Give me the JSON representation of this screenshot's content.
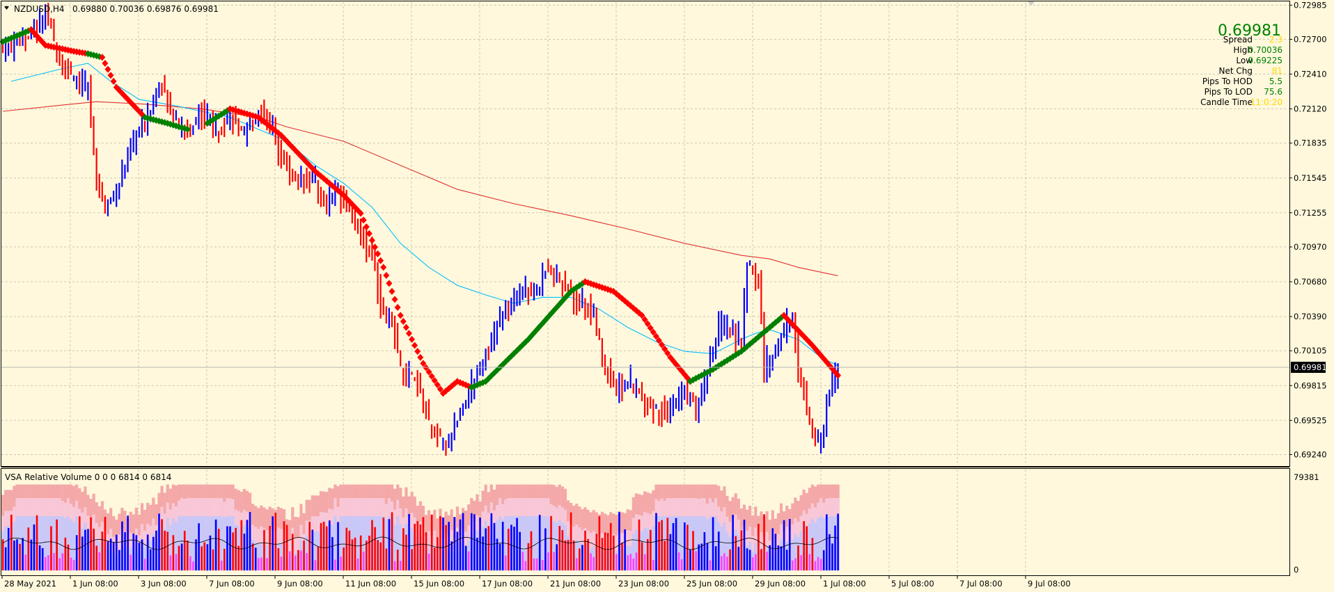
{
  "chart_header": {
    "symbol_tf": "NZDUSD,H4",
    "ohlc": "0.69880 0.70036 0.69876 0.69981"
  },
  "info_panel": {
    "price": "0.69981",
    "rows": [
      {
        "label": "Spread",
        "value": "2.3",
        "color": "#FFD700"
      },
      {
        "label": "High",
        "value": "0.70036",
        "color": "#008000"
      },
      {
        "label": "Low",
        "value": "0.69225",
        "color": "#008000"
      },
      {
        "label": "Net Chg",
        "value": "81",
        "color": "#FFD700"
      },
      {
        "label": "Pips To HOD",
        "value": "5.5",
        "color": "#008000"
      },
      {
        "label": "Pips To LOD",
        "value": "75.6",
        "color": "#008000"
      },
      {
        "label": "Candle Time",
        "value": "11:0:20",
        "color": "#FFD700"
      }
    ]
  },
  "price_axis": {
    "ticks": [
      "0.72985",
      "0.72700",
      "0.72410",
      "0.72120",
      "0.71835",
      "0.71545",
      "0.71255",
      "0.70970",
      "0.70680",
      "0.70390",
      "0.70105",
      "0.69815",
      "0.69525",
      "0.69240"
    ],
    "current_label": "0.69981"
  },
  "volume_panel": {
    "title": "VSA Relative Volume 0 0 0 6814 0 6814",
    "max_label": "79381",
    "min_label": "0"
  },
  "time_axis": {
    "labels": [
      "28 May 2021",
      "1 Jun 08:00",
      "3 Jun 08:00",
      "7 Jun 08:00",
      "9 Jun 08:00",
      "11 Jun 08:00",
      "15 Jun 08:00",
      "17 Jun 08:00",
      "21 Jun 08:00",
      "23 Jun 08:00",
      "25 Jun 08:00",
      "29 Jun 08:00",
      "1 Jul 08:00",
      "5 Jul 08:00",
      "7 Jul 08:00",
      "9 Jul 08:00"
    ]
  },
  "colors": {
    "background": "#FFF8DC",
    "grid": "#C8C8B4",
    "bull_bar": "#0000FF",
    "bear_bar": "#FF0000",
    "ma_fast": "#00BFFF",
    "ma_slow": "#E03030",
    "trail_up": "#008000",
    "trail_down": "#FF0000"
  },
  "chart_data": {
    "type": "ohlc",
    "symbol": "NZDUSD",
    "timeframe": "H4",
    "ylim": [
      0.6915,
      0.7301
    ],
    "bar_count": 240,
    "price_path": [
      [
        0,
        0.726
      ],
      [
        10,
        0.7275
      ],
      [
        15,
        0.729
      ],
      [
        20,
        0.7255
      ],
      [
        25,
        0.7235
      ],
      [
        30,
        0.723
      ],
      [
        33,
        0.715
      ],
      [
        36,
        0.713
      ],
      [
        41,
        0.715
      ],
      [
        46,
        0.7185
      ],
      [
        50,
        0.72
      ],
      [
        55,
        0.7235
      ],
      [
        60,
        0.7205
      ],
      [
        65,
        0.719
      ],
      [
        70,
        0.721
      ],
      [
        75,
        0.7195
      ],
      [
        80,
        0.7205
      ],
      [
        85,
        0.719
      ],
      [
        90,
        0.721
      ],
      [
        95,
        0.7195
      ],
      [
        98,
        0.7175
      ],
      [
        102,
        0.7155
      ],
      [
        108,
        0.7155
      ],
      [
        114,
        0.7135
      ],
      [
        118,
        0.7145
      ],
      [
        122,
        0.713
      ],
      [
        126,
        0.7105
      ],
      [
        130,
        0.709
      ],
      [
        134,
        0.704
      ],
      [
        138,
        0.7025
      ],
      [
        140,
        0.6995
      ],
      [
        144,
        0.699
      ],
      [
        148,
        0.6968
      ],
      [
        150,
        0.695
      ],
      [
        152,
        0.6942
      ],
      [
        154,
        0.6935
      ],
      [
        156,
        0.693
      ],
      [
        160,
        0.6955
      ],
      [
        164,
        0.6975
      ],
      [
        168,
        0.7
      ],
      [
        172,
        0.702
      ],
      [
        176,
        0.704
      ],
      [
        180,
        0.705
      ],
      [
        184,
        0.7065
      ],
      [
        188,
        0.706
      ],
      [
        192,
        0.708
      ],
      [
        196,
        0.707
      ],
      [
        200,
        0.7055
      ],
      [
        204,
        0.705
      ],
      [
        208,
        0.704
      ],
      [
        212,
        0.6995
      ],
      [
        216,
        0.698
      ],
      [
        220,
        0.6985
      ],
      [
        224,
        0.6975
      ],
      [
        228,
        0.6965
      ],
      [
        232,
        0.696
      ],
      [
        236,
        0.6965
      ],
      [
        240,
        0.698
      ],
      [
        244,
        0.696
      ],
      [
        248,
        0.6995
      ],
      [
        252,
        0.703
      ],
      [
        256,
        0.7025
      ],
      [
        260,
        0.702
      ],
      [
        262,
        0.7085
      ],
      [
        264,
        0.7075
      ],
      [
        266,
        0.707
      ],
      [
        268,
        0.6995
      ],
      [
        270,
        0.7005
      ],
      [
        272,
        0.701
      ],
      [
        274,
        0.7025
      ],
      [
        278,
        0.704
      ],
      [
        280,
        0.699
      ],
      [
        282,
        0.6975
      ],
      [
        284,
        0.695
      ],
      [
        286,
        0.6935
      ],
      [
        288,
        0.694
      ],
      [
        290,
        0.6965
      ],
      [
        292,
        0.6985
      ],
      [
        294,
        0.6998
      ]
    ],
    "ma_slow": [
      [
        0,
        0.721
      ],
      [
        20,
        0.7215
      ],
      [
        33,
        0.7218
      ],
      [
        50,
        0.7216
      ],
      [
        70,
        0.7212
      ],
      [
        90,
        0.7205
      ],
      [
        100,
        0.7197
      ],
      [
        120,
        0.7185
      ],
      [
        140,
        0.7165
      ],
      [
        160,
        0.7145
      ],
      [
        180,
        0.7133
      ],
      [
        200,
        0.7123
      ],
      [
        220,
        0.7112
      ],
      [
        240,
        0.71
      ],
      [
        260,
        0.709
      ],
      [
        270,
        0.7087
      ],
      [
        280,
        0.708
      ],
      [
        294,
        0.7073
      ]
    ],
    "ma_fast": [
      [
        3,
        0.7235
      ],
      [
        20,
        0.7245
      ],
      [
        30,
        0.725
      ],
      [
        38,
        0.7235
      ],
      [
        48,
        0.722
      ],
      [
        60,
        0.7215
      ],
      [
        80,
        0.7205
      ],
      [
        100,
        0.7185
      ],
      [
        110,
        0.7165
      ],
      [
        120,
        0.715
      ],
      [
        130,
        0.713
      ],
      [
        140,
        0.71
      ],
      [
        150,
        0.708
      ],
      [
        160,
        0.7065
      ],
      [
        170,
        0.7057
      ],
      [
        180,
        0.705
      ],
      [
        190,
        0.7055
      ],
      [
        200,
        0.7055
      ],
      [
        210,
        0.7045
      ],
      [
        220,
        0.703
      ],
      [
        230,
        0.7018
      ],
      [
        240,
        0.701
      ],
      [
        250,
        0.7008
      ],
      [
        260,
        0.702
      ],
      [
        265,
        0.7025
      ],
      [
        270,
        0.7028
      ],
      [
        280,
        0.702
      ],
      [
        288,
        0.7005
      ],
      [
        294,
        0.6998
      ]
    ],
    "trail_segments": [
      {
        "trend": "up",
        "points": [
          [
            0,
            0.7268
          ],
          [
            10,
            0.7278
          ]
        ]
      },
      {
        "trend": "down",
        "points": [
          [
            10,
            0.7278
          ],
          [
            15,
            0.7265
          ],
          [
            25,
            0.726
          ],
          [
            30,
            0.7258
          ]
        ]
      },
      {
        "trend": "up",
        "points": [
          [
            30,
            0.7258
          ],
          [
            35,
            0.7255
          ]
        ]
      },
      {
        "trend": "down",
        "points": [
          [
            35,
            0.7255
          ],
          [
            40,
            0.723
          ],
          [
            50,
            0.7205
          ]
        ]
      },
      {
        "trend": "up",
        "points": [
          [
            50,
            0.7205
          ],
          [
            58,
            0.72
          ],
          [
            65,
            0.7195
          ]
        ]
      },
      {
        "trend": "up",
        "points": [
          [
            72,
            0.72
          ],
          [
            80,
            0.7212
          ]
        ]
      },
      {
        "trend": "down",
        "points": [
          [
            80,
            0.7212
          ],
          [
            90,
            0.7205
          ],
          [
            98,
            0.719
          ],
          [
            110,
            0.716
          ],
          [
            120,
            0.714
          ],
          [
            126,
            0.7125
          ],
          [
            134,
            0.708
          ],
          [
            140,
            0.704
          ],
          [
            148,
            0.7
          ],
          [
            155,
            0.6975
          ],
          [
            160,
            0.6985
          ],
          [
            165,
            0.698
          ]
        ]
      },
      {
        "trend": "up",
        "points": [
          [
            165,
            0.698
          ],
          [
            170,
            0.6985
          ],
          [
            185,
            0.702
          ],
          [
            200,
            0.706
          ],
          [
            205,
            0.7068
          ]
        ]
      },
      {
        "trend": "down",
        "points": [
          [
            205,
            0.7068
          ],
          [
            215,
            0.706
          ],
          [
            225,
            0.704
          ],
          [
            235,
            0.7005
          ],
          [
            242,
            0.6985
          ]
        ]
      },
      {
        "trend": "up",
        "points": [
          [
            242,
            0.6985
          ],
          [
            250,
            0.6995
          ],
          [
            260,
            0.701
          ],
          [
            265,
            0.702
          ],
          [
            275,
            0.704
          ]
        ]
      },
      {
        "trend": "down",
        "points": [
          [
            275,
            0.704
          ],
          [
            285,
            0.7015
          ],
          [
            294,
            0.699
          ]
        ]
      }
    ],
    "volume_max": 79381
  }
}
